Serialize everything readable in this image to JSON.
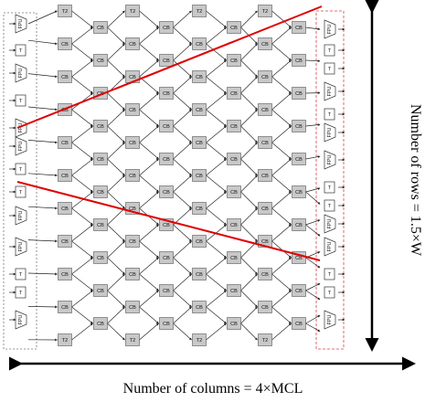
{
  "diagram": {
    "crossbar_label": "CB",
    "t2_label": "T2",
    "t_label": "T",
    "fpu_label": "FPU",
    "columns_caption": "Number of columns = 4×MCL",
    "rows_caption": "Number of rows = 1.5×W",
    "colors": {
      "block_fill": "#c8c8c8",
      "block_stroke": "#555555",
      "arrow": "#222222",
      "highlight_line": "#e00000",
      "dashed_box": "#e04040",
      "left_dashed_box": "#777777"
    }
  }
}
